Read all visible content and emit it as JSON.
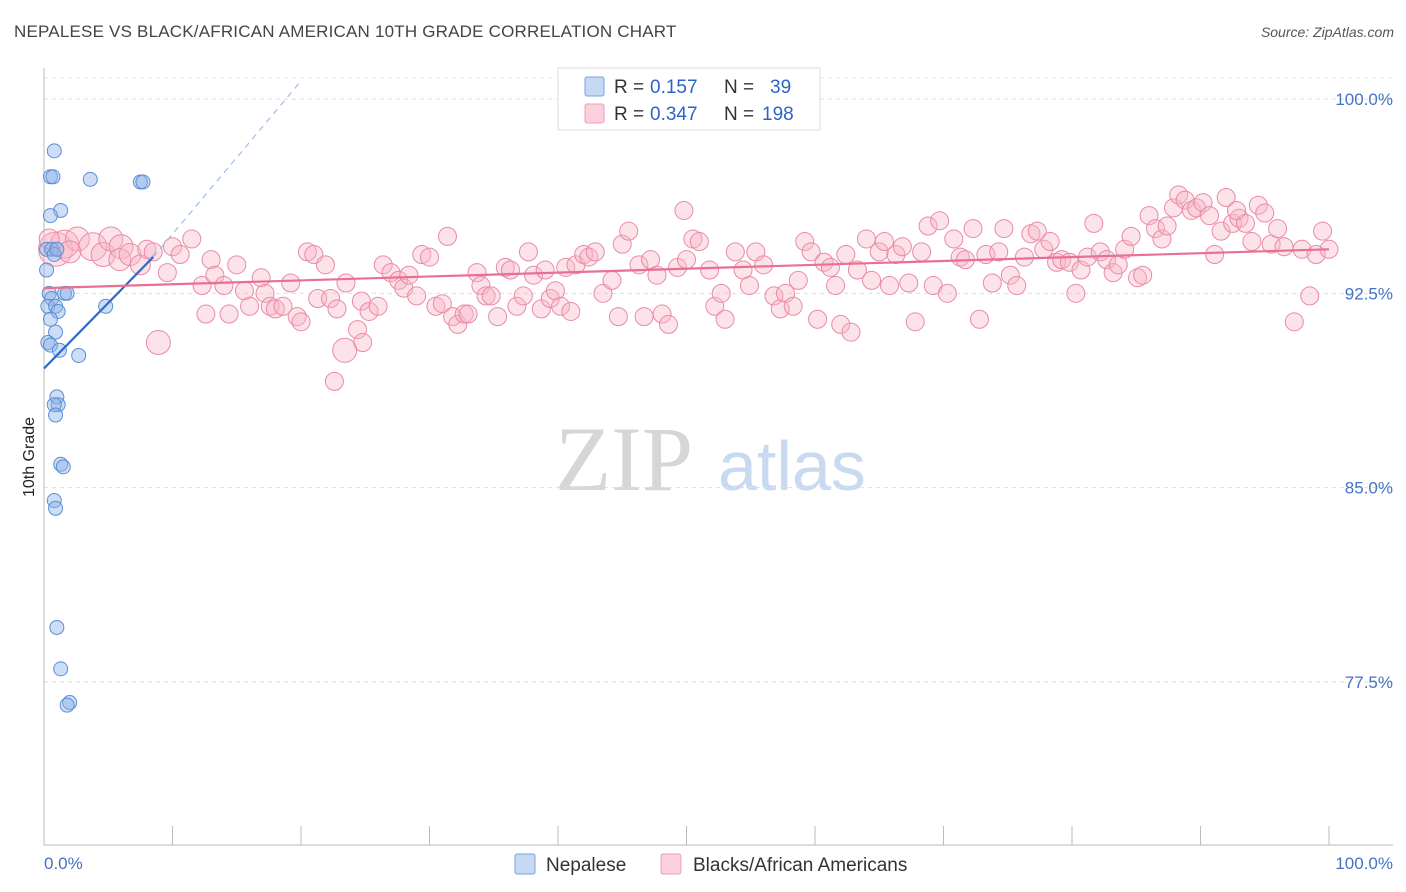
{
  "chart_data": {
    "type": "scatter",
    "title": "NEPALESE VS BLACK/AFRICAN AMERICAN 10TH GRADE CORRELATION CHART",
    "source": "Source: ZipAtlas.com",
    "xlabel": "",
    "ylabel": "10th Grade",
    "xlim": [
      0,
      100
    ],
    "ylim": [
      71.2,
      101.2
    ],
    "y_ticks": [
      {
        "value": 100.0,
        "label": "100.0%"
      },
      {
        "value": 92.5,
        "label": "92.5%"
      },
      {
        "value": 85.0,
        "label": "85.0%"
      },
      {
        "value": 77.5,
        "label": "77.5%"
      }
    ],
    "x_tick_labels": {
      "left": "0.0%",
      "right": "100.0%"
    },
    "watermark": {
      "zip": "ZIP",
      "atlas": "atlas"
    },
    "legend": {
      "r_label": "R =",
      "n_label": "N =",
      "entries": [
        {
          "r": "0.157",
          "n": "39"
        },
        {
          "r": "0.347",
          "n": "198"
        }
      ]
    },
    "series": [
      {
        "name": "Nepalese",
        "color": "#8fb4e8",
        "stroke": "#5b8fd6",
        "trend": {
          "x1": 0.0,
          "y1": 89.6,
          "x2": 8.5,
          "y2": 93.9,
          "dash_to_x": 20.0,
          "dash_to_y": 100.7,
          "color": "#2d6cc6"
        },
        "points": [
          {
            "x": 0.8,
            "y": 98.0
          },
          {
            "x": 0.5,
            "y": 97.0
          },
          {
            "x": 0.7,
            "y": 97.0
          },
          {
            "x": 3.6,
            "y": 96.9
          },
          {
            "x": 7.5,
            "y": 96.8
          },
          {
            "x": 7.7,
            "y": 96.8
          },
          {
            "x": 1.3,
            "y": 95.7
          },
          {
            "x": 0.5,
            "y": 95.5
          },
          {
            "x": 0.2,
            "y": 94.2
          },
          {
            "x": 0.6,
            "y": 94.2
          },
          {
            "x": 0.8,
            "y": 94.0
          },
          {
            "x": 1.0,
            "y": 94.2
          },
          {
            "x": 0.2,
            "y": 93.4
          },
          {
            "x": 0.4,
            "y": 92.5
          },
          {
            "x": 0.6,
            "y": 92.3
          },
          {
            "x": 1.6,
            "y": 92.5
          },
          {
            "x": 1.8,
            "y": 92.5
          },
          {
            "x": 0.3,
            "y": 92.0
          },
          {
            "x": 0.9,
            "y": 92.0
          },
          {
            "x": 4.8,
            "y": 92.0
          },
          {
            "x": 1.1,
            "y": 91.8
          },
          {
            "x": 0.5,
            "y": 91.5
          },
          {
            "x": 0.9,
            "y": 91.0
          },
          {
            "x": 0.3,
            "y": 90.6
          },
          {
            "x": 0.5,
            "y": 90.5
          },
          {
            "x": 1.2,
            "y": 90.3
          },
          {
            "x": 2.7,
            "y": 90.1
          },
          {
            "x": 1.0,
            "y": 88.5
          },
          {
            "x": 1.1,
            "y": 88.2
          },
          {
            "x": 0.8,
            "y": 88.2
          },
          {
            "x": 0.9,
            "y": 87.8
          },
          {
            "x": 1.3,
            "y": 85.9
          },
          {
            "x": 1.5,
            "y": 85.8
          },
          {
            "x": 0.8,
            "y": 84.5
          },
          {
            "x": 0.9,
            "y": 84.2
          },
          {
            "x": 1.0,
            "y": 79.6
          },
          {
            "x": 1.3,
            "y": 78.0
          },
          {
            "x": 2.0,
            "y": 76.7
          },
          {
            "x": 1.8,
            "y": 76.6
          }
        ]
      },
      {
        "name": "Blacks/African Americans",
        "color": "#f7b6c8",
        "stroke": "#ea8aa6",
        "trend": {
          "x1": 0.0,
          "y1": 92.7,
          "x2": 100.0,
          "y2": 94.2,
          "color": "#e86f95"
        },
        "points": [
          {
            "x": 0.9,
            "y": 94.2,
            "r": 17
          },
          {
            "x": 1.6,
            "y": 94.4,
            "r": 14
          },
          {
            "x": 2.6,
            "y": 94.6,
            "r": 12
          },
          {
            "x": 3.8,
            "y": 94.3,
            "r": 14
          },
          {
            "x": 4.6,
            "y": 94.0,
            "r": 12
          },
          {
            "x": 5.2,
            "y": 94.6,
            "r": 12
          },
          {
            "x": 6.0,
            "y": 94.3,
            "r": 12
          },
          {
            "x": 5.9,
            "y": 93.8,
            "r": 11
          },
          {
            "x": 6.7,
            "y": 94.0,
            "r": 11
          },
          {
            "x": 7.5,
            "y": 93.6,
            "r": 10
          },
          {
            "x": 0.4,
            "y": 94.6,
            "r": 10
          },
          {
            "x": 2.0,
            "y": 94.1,
            "r": 11
          },
          {
            "x": 8.0,
            "y": 94.2
          },
          {
            "x": 8.5,
            "y": 94.1
          },
          {
            "x": 9.6,
            "y": 93.3
          },
          {
            "x": 10.0,
            "y": 94.3
          },
          {
            "x": 10.6,
            "y": 94.0
          },
          {
            "x": 11.5,
            "y": 94.6
          },
          {
            "x": 12.3,
            "y": 92.8
          },
          {
            "x": 12.6,
            "y": 91.7
          },
          {
            "x": 13.0,
            "y": 93.8
          },
          {
            "x": 13.3,
            "y": 93.2
          },
          {
            "x": 14.0,
            "y": 92.8
          },
          {
            "x": 14.4,
            "y": 91.7
          },
          {
            "x": 15.0,
            "y": 93.6
          },
          {
            "x": 15.6,
            "y": 92.6
          },
          {
            "x": 16.0,
            "y": 92.0
          },
          {
            "x": 16.9,
            "y": 93.1
          },
          {
            "x": 17.2,
            "y": 92.5
          },
          {
            "x": 17.6,
            "y": 92.0
          },
          {
            "x": 18.0,
            "y": 91.9
          },
          {
            "x": 18.6,
            "y": 92.0
          },
          {
            "x": 19.2,
            "y": 92.9
          },
          {
            "x": 19.7,
            "y": 91.6
          },
          {
            "x": 20.0,
            "y": 91.4
          },
          {
            "x": 20.5,
            "y": 94.1
          },
          {
            "x": 21.0,
            "y": 94.0
          },
          {
            "x": 21.3,
            "y": 92.3
          },
          {
            "x": 21.9,
            "y": 93.6
          },
          {
            "x": 22.3,
            "y": 92.3
          },
          {
            "x": 22.8,
            "y": 91.9
          },
          {
            "x": 23.5,
            "y": 92.9
          },
          {
            "x": 24.4,
            "y": 91.1
          },
          {
            "x": 24.8,
            "y": 90.6
          },
          {
            "x": 23.4,
            "y": 90.3,
            "r": 12
          },
          {
            "x": 8.9,
            "y": 90.6,
            "r": 12
          },
          {
            "x": 22.6,
            "y": 89.1
          },
          {
            "x": 24.7,
            "y": 92.2
          },
          {
            "x": 25.3,
            "y": 91.8
          },
          {
            "x": 26.0,
            "y": 92.0
          },
          {
            "x": 26.4,
            "y": 93.6
          },
          {
            "x": 27.0,
            "y": 93.3
          },
          {
            "x": 27.6,
            "y": 93.0
          },
          {
            "x": 28.0,
            "y": 92.7
          },
          {
            "x": 28.4,
            "y": 93.2
          },
          {
            "x": 29.0,
            "y": 92.4
          },
          {
            "x": 29.4,
            "y": 94.0
          },
          {
            "x": 30.0,
            "y": 93.9
          },
          {
            "x": 30.5,
            "y": 92.0
          },
          {
            "x": 31.0,
            "y": 92.1
          },
          {
            "x": 31.4,
            "y": 94.7
          },
          {
            "x": 31.8,
            "y": 91.6
          },
          {
            "x": 32.2,
            "y": 91.3
          },
          {
            "x": 32.7,
            "y": 91.7
          },
          {
            "x": 33.0,
            "y": 91.7
          },
          {
            "x": 33.7,
            "y": 93.3
          },
          {
            "x": 34.0,
            "y": 92.8
          },
          {
            "x": 34.4,
            "y": 92.4
          },
          {
            "x": 34.8,
            "y": 92.4
          },
          {
            "x": 35.3,
            "y": 91.6
          },
          {
            "x": 35.9,
            "y": 93.5
          },
          {
            "x": 36.3,
            "y": 93.4
          },
          {
            "x": 36.8,
            "y": 92.0
          },
          {
            "x": 37.3,
            "y": 92.4
          },
          {
            "x": 37.7,
            "y": 94.1
          },
          {
            "x": 38.1,
            "y": 93.2
          },
          {
            "x": 38.7,
            "y": 91.9
          },
          {
            "x": 39.0,
            "y": 93.4
          },
          {
            "x": 39.4,
            "y": 92.3
          },
          {
            "x": 39.8,
            "y": 92.6
          },
          {
            "x": 40.2,
            "y": 92.0
          },
          {
            "x": 40.6,
            "y": 93.5
          },
          {
            "x": 41.0,
            "y": 91.8
          },
          {
            "x": 41.4,
            "y": 93.6
          },
          {
            "x": 42.0,
            "y": 94.0
          },
          {
            "x": 42.4,
            "y": 93.9
          },
          {
            "x": 42.9,
            "y": 94.1
          },
          {
            "x": 43.5,
            "y": 92.5
          },
          {
            "x": 44.2,
            "y": 93.0
          },
          {
            "x": 44.7,
            "y": 91.6
          },
          {
            "x": 45.0,
            "y": 94.4
          },
          {
            "x": 45.5,
            "y": 94.9
          },
          {
            "x": 46.3,
            "y": 93.6
          },
          {
            "x": 46.7,
            "y": 91.6
          },
          {
            "x": 47.2,
            "y": 93.8
          },
          {
            "x": 47.7,
            "y": 93.2
          },
          {
            "x": 48.1,
            "y": 91.7
          },
          {
            "x": 48.6,
            "y": 91.3
          },
          {
            "x": 49.3,
            "y": 93.5
          },
          {
            "x": 50.0,
            "y": 93.8
          },
          {
            "x": 50.5,
            "y": 94.6
          },
          {
            "x": 49.8,
            "y": 95.7
          },
          {
            "x": 51.0,
            "y": 94.5
          },
          {
            "x": 51.8,
            "y": 93.4
          },
          {
            "x": 52.2,
            "y": 92.0
          },
          {
            "x": 52.7,
            "y": 92.5
          },
          {
            "x": 53.0,
            "y": 91.5
          },
          {
            "x": 53.8,
            "y": 94.1
          },
          {
            "x": 54.4,
            "y": 93.4
          },
          {
            "x": 54.9,
            "y": 92.8
          },
          {
            "x": 55.4,
            "y": 94.1
          },
          {
            "x": 56.0,
            "y": 93.6
          },
          {
            "x": 56.8,
            "y": 92.4
          },
          {
            "x": 57.3,
            "y": 91.9
          },
          {
            "x": 57.7,
            "y": 92.5
          },
          {
            "x": 58.3,
            "y": 92.0
          },
          {
            "x": 58.7,
            "y": 93.0
          },
          {
            "x": 59.2,
            "y": 94.5
          },
          {
            "x": 59.7,
            "y": 94.1
          },
          {
            "x": 60.2,
            "y": 91.5
          },
          {
            "x": 60.7,
            "y": 93.7
          },
          {
            "x": 61.2,
            "y": 93.5
          },
          {
            "x": 61.6,
            "y": 92.8
          },
          {
            "x": 62.0,
            "y": 91.3
          },
          {
            "x": 62.4,
            "y": 94.0
          },
          {
            "x": 62.8,
            "y": 91.0
          },
          {
            "x": 63.3,
            "y": 93.4
          },
          {
            "x": 64.0,
            "y": 94.6
          },
          {
            "x": 64.4,
            "y": 93.0
          },
          {
            "x": 65.0,
            "y": 94.1
          },
          {
            "x": 65.4,
            "y": 94.5
          },
          {
            "x": 65.8,
            "y": 92.8
          },
          {
            "x": 66.3,
            "y": 94.0
          },
          {
            "x": 66.8,
            "y": 94.3
          },
          {
            "x": 67.3,
            "y": 92.9
          },
          {
            "x": 67.8,
            "y": 91.4
          },
          {
            "x": 68.3,
            "y": 94.1
          },
          {
            "x": 68.8,
            "y": 95.1
          },
          {
            "x": 69.2,
            "y": 92.8
          },
          {
            "x": 69.7,
            "y": 95.3
          },
          {
            "x": 70.3,
            "y": 92.5
          },
          {
            "x": 70.8,
            "y": 94.6
          },
          {
            "x": 71.3,
            "y": 93.9
          },
          {
            "x": 71.7,
            "y": 93.8
          },
          {
            "x": 72.3,
            "y": 95.0
          },
          {
            "x": 72.8,
            "y": 91.5
          },
          {
            "x": 73.3,
            "y": 94.0
          },
          {
            "x": 73.8,
            "y": 92.9
          },
          {
            "x": 74.3,
            "y": 94.1
          },
          {
            "x": 74.7,
            "y": 95.0
          },
          {
            "x": 75.2,
            "y": 93.2
          },
          {
            "x": 75.7,
            "y": 92.8
          },
          {
            "x": 76.3,
            "y": 93.9
          },
          {
            "x": 76.8,
            "y": 94.8
          },
          {
            "x": 77.3,
            "y": 94.9
          },
          {
            "x": 77.8,
            "y": 94.2
          },
          {
            "x": 78.3,
            "y": 94.5
          },
          {
            "x": 78.8,
            "y": 93.7
          },
          {
            "x": 79.2,
            "y": 93.8
          },
          {
            "x": 79.8,
            "y": 93.7
          },
          {
            "x": 80.3,
            "y": 92.5
          },
          {
            "x": 80.7,
            "y": 93.4
          },
          {
            "x": 81.2,
            "y": 93.9
          },
          {
            "x": 81.7,
            "y": 95.2
          },
          {
            "x": 82.2,
            "y": 94.1
          },
          {
            "x": 82.7,
            "y": 93.8
          },
          {
            "x": 83.2,
            "y": 93.3
          },
          {
            "x": 83.6,
            "y": 93.6
          },
          {
            "x": 84.1,
            "y": 94.2
          },
          {
            "x": 84.6,
            "y": 94.7
          },
          {
            "x": 85.1,
            "y": 93.1
          },
          {
            "x": 85.5,
            "y": 93.2
          },
          {
            "x": 86.0,
            "y": 95.5
          },
          {
            "x": 86.5,
            "y": 95.0
          },
          {
            "x": 87.0,
            "y": 94.6
          },
          {
            "x": 87.4,
            "y": 95.1
          },
          {
            "x": 87.9,
            "y": 95.8
          },
          {
            "x": 88.3,
            "y": 96.3
          },
          {
            "x": 88.8,
            "y": 96.1
          },
          {
            "x": 89.3,
            "y": 95.7
          },
          {
            "x": 89.7,
            "y": 95.8
          },
          {
            "x": 90.2,
            "y": 96.0
          },
          {
            "x": 90.7,
            "y": 95.5
          },
          {
            "x": 91.1,
            "y": 94.0
          },
          {
            "x": 91.6,
            "y": 94.9
          },
          {
            "x": 92.0,
            "y": 96.2
          },
          {
            "x": 92.5,
            "y": 95.2
          },
          {
            "x": 93.0,
            "y": 95.4
          },
          {
            "x": 93.5,
            "y": 95.2
          },
          {
            "x": 94.0,
            "y": 94.5
          },
          {
            "x": 94.5,
            "y": 95.9
          },
          {
            "x": 95.0,
            "y": 95.6
          },
          {
            "x": 95.5,
            "y": 94.4
          },
          {
            "x": 96.0,
            "y": 95.0
          },
          {
            "x": 96.5,
            "y": 94.3
          },
          {
            "x": 97.3,
            "y": 91.4
          },
          {
            "x": 97.9,
            "y": 94.2
          },
          {
            "x": 98.5,
            "y": 92.4
          },
          {
            "x": 99.0,
            "y": 94.0
          },
          {
            "x": 99.5,
            "y": 94.9
          },
          {
            "x": 100.0,
            "y": 94.2
          },
          {
            "x": 92.8,
            "y": 95.7
          }
        ]
      }
    ]
  }
}
